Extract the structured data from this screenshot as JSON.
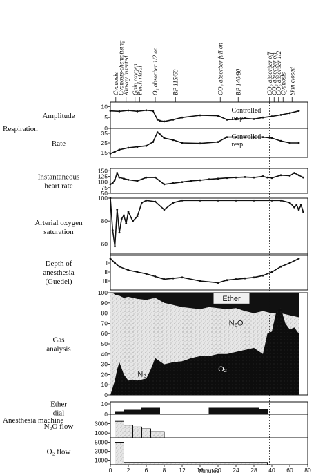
{
  "chart_data": {
    "type": "line",
    "x_label": "Minutes",
    "x_ticks": [
      0,
      4,
      8,
      12,
      16,
      20,
      24,
      28,
      32,
      36,
      40,
      44
    ],
    "x_tick_labels": [
      "0",
      "2",
      "6",
      "8",
      "12",
      "16",
      "20",
      "24",
      "28",
      "40",
      "60",
      "80"
    ],
    "events": [
      {
        "x": 1.2,
        "label": "Cyanosis"
      },
      {
        "x": 2.4,
        "label": "Cyanosis-chemotising"
      },
      {
        "x": 3.5,
        "label": "Airway inserted"
      },
      {
        "x": 5.5,
        "label": "Gain oxygen"
      },
      {
        "x": 6.5,
        "label": "Pinch nasal"
      },
      {
        "x": 10.0,
        "label": "O₂ absorber 1/2 on"
      },
      {
        "x": 14.5,
        "label": "BP 115/60"
      },
      {
        "x": 24.5,
        "label": "CO₂ absorber full on"
      },
      {
        "x": 28.5,
        "label": "BP 140/80"
      },
      {
        "x": 35.5,
        "label": "CO₂ absorber off"
      },
      {
        "x": 36.5,
        "label": "CO₂ absorber on"
      },
      {
        "x": 37.5,
        "label": "CO₂ absorber 1/2"
      },
      {
        "x": 38.5,
        "label": "Cyanosis"
      },
      {
        "x": 40.5,
        "label": "Skin closed"
      }
    ],
    "panels": [
      {
        "id": "amplitude",
        "group_label": "Respiration",
        "label_lines": [
          "Amplitude"
        ],
        "ylim": [
          0,
          12
        ],
        "ticks": [
          0,
          5,
          10
        ],
        "series": [
          {
            "x": [
              0,
              2,
              4,
              6,
              8,
              9.5,
              10.5,
              11,
              12,
              14,
              16,
              20,
              24,
              26,
              28,
              30,
              32,
              34,
              36,
              38,
              40,
              42
            ],
            "y": [
              8,
              7.8,
              8.2,
              7.8,
              8.3,
              8,
              4,
              3.5,
              3.2,
              4,
              5,
              6,
              5.8,
              4,
              4.2,
              4.6,
              4.3,
              5,
              5.5,
              6.2,
              7,
              8
            ]
          }
        ],
        "annotation": [
          "Controlled",
          "resp."
        ],
        "annotation_x": 27
      },
      {
        "id": "rate",
        "group_label": "",
        "label_lines": [
          "Rate"
        ],
        "ylim": [
          10,
          40
        ],
        "ticks": [
          15,
          25,
          35
        ],
        "series": [
          {
            "x": [
              0,
              1,
              2,
              4,
              6,
              8,
              9.5,
              10.5,
              11,
              12,
              14,
              16,
              20,
              24,
              26,
              28,
              30,
              32,
              34,
              36,
              38,
              40,
              42
            ],
            "y": [
              14,
              16,
              18,
              20,
              21,
              22,
              26,
              36,
              34,
              30,
              28,
              25,
              24.5,
              26,
              31,
              31,
              31,
              31,
              31,
              30,
              27,
              25,
              25
            ]
          }
        ],
        "annotation": [
          "Controlled",
          "resp."
        ],
        "annotation_x": 27
      },
      {
        "id": "heart_rate",
        "group_label": "",
        "label_lines": [
          "Instantaneous",
          "heart rate"
        ],
        "ylim": [
          50,
          160
        ],
        "ticks": [
          50,
          75,
          100,
          125,
          150
        ],
        "series": [
          {
            "x": [
              0,
              0.5,
              1,
              1.5,
              2,
              3,
              4,
              6,
              8,
              10,
              12,
              14,
              16,
              18,
              20,
              22,
              24,
              26,
              28,
              30,
              32,
              34,
              35,
              36,
              38,
              40,
              41,
              42,
              43
            ],
            "y": [
              90,
              95,
              110,
              140,
              120,
              115,
              110,
              105,
              120,
              120,
              90,
              95,
              100,
              105,
              108,
              112,
              115,
              118,
              120,
              122,
              120,
              125,
              120,
              118,
              130,
              128,
              140,
              130,
              120
            ]
          }
        ]
      },
      {
        "id": "oxygen_saturation",
        "group_label": "",
        "label_lines": [
          "Arterial oxygen",
          "saturation"
        ],
        "ylim": [
          50,
          100
        ],
        "ticks": [
          60,
          80,
          100
        ],
        "series": [
          {
            "x": [
              0,
              0.5,
              1,
              1.5,
              2,
              2.5,
              3,
              3.5,
              4,
              5,
              6,
              7,
              8,
              10,
              12,
              14,
              16,
              20,
              24,
              28,
              32,
              36,
              38,
              40,
              41,
              41.5,
              42,
              42.5,
              43
            ],
            "y": [
              100,
              72,
              58,
              90,
              70,
              82,
              85,
              78,
              88,
              80,
              84,
              96,
              98,
              97,
              90,
              96,
              98,
              98,
              98,
              98,
              98,
              98,
              98,
              96,
              92,
              94,
              90,
              94,
              88
            ]
          }
        ]
      },
      {
        "id": "depth",
        "group_label": "",
        "label_lines": [
          "Depth of",
          "anesthesia",
          "(Guedel)"
        ],
        "ylim": [
          0,
          4
        ],
        "ticks": [
          1,
          2,
          3
        ],
        "tick_labels": [
          "III",
          "II",
          "I"
        ],
        "series": [
          {
            "x": [
              0,
              1,
              2,
              4,
              6,
              8,
              10,
              12,
              14,
              16,
              20,
              24,
              26,
              28,
              30,
              32,
              34,
              36,
              38,
              40,
              42
            ],
            "y": [
              3.5,
              3.0,
              2.6,
              2.2,
              2.0,
              1.8,
              1.5,
              1.2,
              1.3,
              1.4,
              1.0,
              0.8,
              1.1,
              1.2,
              1.3,
              1.4,
              1.6,
              2.0,
              2.6,
              3.0,
              3.5
            ]
          }
        ]
      },
      {
        "id": "gas",
        "group_label": "",
        "label_lines": [
          "Gas",
          "analysis"
        ],
        "ylim": [
          0,
          100
        ],
        "ticks": [
          0,
          10,
          20,
          30,
          40,
          50,
          60,
          70,
          80,
          90,
          100
        ],
        "bands": {
          "n2_top": {
            "x": [
              0,
              0.5,
              1,
              2,
              3,
              4,
              5,
              6,
              8,
              10,
              12,
              14,
              16,
              18,
              20,
              22,
              24,
              26,
              28,
              30,
              32,
              34,
              36,
              38,
              40,
              42
            ],
            "y": [
              100,
              100,
              98,
              97,
              95,
              96,
              95,
              94,
              93,
              95,
              90,
              88,
              86,
              85,
              84,
              86,
              85,
              84,
              85,
              82,
              80,
              82,
              80,
              80,
              78,
              76
            ]
          },
          "o2_top": {
            "x": [
              0,
              1,
              1.5,
              2,
              3,
              4,
              5,
              6,
              7,
              8,
              9,
              10,
              11,
              12,
              14,
              16,
              18,
              20,
              22,
              24,
              26,
              28,
              30,
              32,
              34,
              35,
              36,
              37,
              38,
              39,
              40,
              41,
              42
            ],
            "y": [
              0,
              14,
              25,
              32,
              20,
              14,
              15,
              14,
              15,
              16,
              25,
              36,
              33,
              30,
              32,
              33,
              36,
              38,
              38,
              40,
              40,
              42,
              44,
              46,
              40,
              60,
              62,
              82,
              85,
              70,
              64,
              66,
              60
            ]
          },
          "end_x": 42
        },
        "labels": [
          {
            "text": "Ether",
            "x": 27,
            "y": 92
          },
          {
            "text": "N₂O",
            "x": 28,
            "y": 68
          },
          {
            "text": "N₂",
            "x": 7,
            "y": 18
          },
          {
            "text": "O₂",
            "x": 25,
            "y": 23
          }
        ]
      },
      {
        "id": "ether_dial",
        "group_label": "",
        "label_lines": [
          "Ether",
          "dial"
        ],
        "ylim": [
          0,
          12
        ],
        "ticks": [
          0,
          10
        ],
        "steps": [
          {
            "x0": 1,
            "x1": 3,
            "y": 2
          },
          {
            "x0": 3,
            "x1": 7,
            "y": 4
          },
          {
            "x0": 7,
            "x1": 11,
            "y": 6
          },
          {
            "x0": 22,
            "x1": 33,
            "y": 6
          },
          {
            "x0": 33,
            "x1": 35,
            "y": 5
          }
        ]
      },
      {
        "id": "n2o_flow",
        "group_label": "Anesthesia machine",
        "label_lines": [
          "N₂O flow"
        ],
        "ylim": [
          0,
          5000
        ],
        "ticks": [
          1000,
          3000
        ],
        "steps": [
          {
            "x0": 1,
            "x1": 3,
            "y": 3500
          },
          {
            "x0": 3,
            "x1": 5,
            "y": 2700
          },
          {
            "x0": 5,
            "x1": 7,
            "y": 2300
          },
          {
            "x0": 7,
            "x1": 9,
            "y": 1900
          },
          {
            "x0": 9,
            "x1": 12,
            "y": 1300
          }
        ]
      },
      {
        "id": "o2_flow",
        "group_label": "",
        "label_lines": [
          "O₂ flow"
        ],
        "ylim": [
          0,
          6000
        ],
        "ticks": [
          1000,
          3000,
          5000
        ],
        "steps": [
          {
            "x0": 1,
            "x1": 3,
            "y": 5000
          },
          {
            "x0": 3,
            "x1": 35,
            "y": 500
          }
        ]
      }
    ],
    "marker_x": 35.5
  },
  "colors": {
    "ink": "#111111",
    "paper": "#ffffff",
    "n2o_speckle": "#c8c8c8"
  }
}
